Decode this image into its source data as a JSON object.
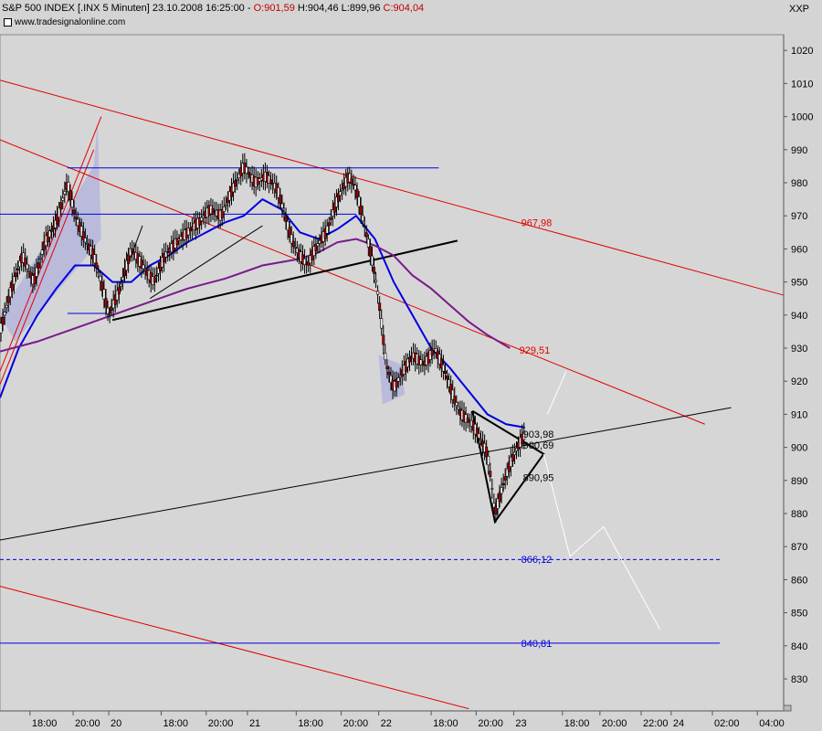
{
  "header": {
    "title_prefix": "S&P 500 INDEX [.INX  5 Minuten] 23.10.2008 16:25:00 - ",
    "open": "O:901,59",
    "high": "H:904,46",
    "low": "L:899,96",
    "close": "C:904,04",
    "source": "www.tradesignalonline.com",
    "symbol": "XXP"
  },
  "colors": {
    "background": "#d4d4d4",
    "plot_area": "#d6d6d6",
    "red_line": "#e00000",
    "blue_line": "#0000e0",
    "purple_ma": "#7a1a8a",
    "black_line": "#000000",
    "white_projection": "#ffffff",
    "channel_fill": "#b0b0dc"
  },
  "chart_data": {
    "type": "line",
    "title": "",
    "xlabel": "",
    "ylabel": "",
    "ylim": [
      820,
      1030
    ],
    "y_ticks": [
      830,
      840,
      850,
      860,
      870,
      880,
      890,
      900,
      910,
      920,
      930,
      940,
      950,
      960,
      970,
      980,
      990,
      1000,
      1010,
      1020
    ],
    "x_tick_labels": [
      "18:00",
      "20:00",
      "20",
      "18:00",
      "20:00",
      "21",
      "18:00",
      "20:00",
      "22",
      "18:00",
      "20:00",
      "23",
      "18:00",
      "20:00",
      "22:00",
      "24",
      "02:00",
      "04:00"
    ],
    "x_tick_index": [
      8,
      19.5,
      29,
      43,
      55,
      66,
      79,
      91,
      101,
      115,
      127,
      137,
      150,
      160,
      171,
      179,
      190,
      202
    ],
    "x_range": [
      0,
      209
    ],
    "grid": false,
    "price_path": [
      [
        0,
        935
      ],
      [
        3,
        948
      ],
      [
        6,
        958
      ],
      [
        9,
        950
      ],
      [
        12,
        962
      ],
      [
        15,
        968
      ],
      [
        18,
        980
      ],
      [
        20,
        970
      ],
      [
        23,
        962
      ],
      [
        25,
        958
      ],
      [
        27,
        950
      ],
      [
        29,
        940
      ],
      [
        32,
        948
      ],
      [
        35,
        960
      ],
      [
        38,
        955
      ],
      [
        41,
        950
      ],
      [
        44,
        958
      ],
      [
        47,
        962
      ],
      [
        50,
        965
      ],
      [
        53,
        968
      ],
      [
        56,
        972
      ],
      [
        59,
        970
      ],
      [
        62,
        978
      ],
      [
        65,
        985
      ],
      [
        68,
        980
      ],
      [
        71,
        982
      ],
      [
        74,
        978
      ],
      [
        76,
        970
      ],
      [
        78,
        962
      ],
      [
        80,
        958
      ],
      [
        82,
        955
      ],
      [
        84,
        960
      ],
      [
        87,
        965
      ],
      [
        90,
        975
      ],
      [
        93,
        982
      ],
      [
        95,
        978
      ],
      [
        97,
        968
      ],
      [
        99,
        958
      ],
      [
        100,
        952
      ],
      [
        101,
        945
      ],
      [
        102,
        935
      ],
      [
        103,
        925
      ],
      [
        105,
        918
      ],
      [
        107,
        922
      ],
      [
        110,
        928
      ],
      [
        113,
        925
      ],
      [
        116,
        930
      ],
      [
        119,
        922
      ],
      [
        121,
        915
      ],
      [
        123,
        910
      ],
      [
        126,
        907
      ],
      [
        128,
        903
      ],
      [
        130,
        898
      ],
      [
        131,
        890
      ],
      [
        132,
        880
      ],
      [
        134,
        888
      ],
      [
        136,
        895
      ],
      [
        138,
        900
      ],
      [
        140,
        904
      ]
    ],
    "series": [
      {
        "name": "",
        "color": "#0000e0",
        "values": [
          [
            0,
            915
          ],
          [
            5,
            930
          ],
          [
            10,
            940
          ],
          [
            15,
            948
          ],
          [
            20,
            955
          ],
          [
            25,
            955
          ],
          [
            30,
            950
          ],
          [
            35,
            950
          ],
          [
            40,
            955
          ],
          [
            45,
            958
          ],
          [
            50,
            962
          ],
          [
            55,
            965
          ],
          [
            60,
            968
          ],
          [
            65,
            970
          ],
          [
            70,
            975
          ],
          [
            75,
            972
          ],
          [
            80,
            965
          ],
          [
            85,
            963
          ],
          [
            90,
            966
          ],
          [
            95,
            970
          ],
          [
            100,
            963
          ],
          [
            105,
            950
          ],
          [
            110,
            940
          ],
          [
            115,
            930
          ],
          [
            120,
            924
          ],
          [
            125,
            917
          ],
          [
            130,
            910
          ],
          [
            135,
            907
          ],
          [
            140,
            906
          ]
        ]
      },
      {
        "name": "",
        "color": "#7a1a8a",
        "values": [
          [
            0,
            929
          ],
          [
            10,
            932
          ],
          [
            20,
            936
          ],
          [
            30,
            940
          ],
          [
            40,
            944
          ],
          [
            50,
            948
          ],
          [
            60,
            951
          ],
          [
            70,
            955
          ],
          [
            80,
            957
          ],
          [
            85,
            959
          ],
          [
            90,
            962
          ],
          [
            95,
            963
          ],
          [
            100,
            961
          ],
          [
            105,
            958
          ],
          [
            110,
            952
          ],
          [
            115,
            948
          ],
          [
            120,
            943
          ],
          [
            125,
            938
          ],
          [
            130,
            934
          ],
          [
            136,
            930
          ]
        ]
      }
    ],
    "lines": [
      {
        "color": "#e00000",
        "points": [
          [
            0,
            1011
          ],
          [
            209,
            946
          ]
        ]
      },
      {
        "color": "#e00000",
        "points": [
          [
            0,
            993
          ],
          [
            188,
            907
          ]
        ]
      },
      {
        "color": "#e00000",
        "points": [
          [
            0,
            858
          ],
          [
            125,
            821
          ]
        ]
      },
      {
        "color": "#e00000",
        "points": [
          [
            0,
            923
          ],
          [
            27,
            1000
          ]
        ]
      },
      {
        "color": "#e00000",
        "points": [
          [
            0,
            919
          ],
          [
            25,
            990
          ]
        ]
      },
      {
        "color": "#0000e0",
        "points": [
          [
            18,
            984.5
          ],
          [
            117,
            984.5
          ]
        ]
      },
      {
        "color": "#0000e0",
        "points": [
          [
            0,
            970.5
          ],
          [
            95,
            970.5
          ]
        ]
      },
      {
        "color": "#0000e0",
        "points": [
          [
            18,
            940.5
          ],
          [
            29,
            940.5
          ]
        ]
      },
      {
        "color": "#0000e0",
        "points": [
          [
            0,
            840.8
          ],
          [
            192,
            840.8
          ]
        ]
      },
      {
        "color": "#0000e0",
        "dashed": true,
        "points": [
          [
            0,
            866.1
          ],
          [
            192,
            866.1
          ]
        ]
      },
      {
        "color": "#000000",
        "width": 2,
        "points": [
          [
            30,
            938.5
          ],
          [
            122,
            962.5
          ]
        ]
      },
      {
        "color": "#000000",
        "points": [
          [
            0,
            872
          ],
          [
            195,
            912
          ]
        ]
      },
      {
        "color": "#000000",
        "points": [
          [
            29,
            940
          ],
          [
            38,
            967
          ]
        ]
      },
      {
        "color": "#000000",
        "points": [
          [
            40,
            945
          ],
          [
            70,
            967
          ]
        ]
      },
      {
        "color": "#000000",
        "width": 2,
        "points": [
          [
            126,
            911
          ],
          [
            145,
            898
          ],
          [
            132,
            877.5
          ],
          [
            126,
            911
          ]
        ]
      },
      {
        "color": "#ffffff",
        "points": [
          [
            145,
            898
          ],
          [
            152,
            867
          ],
          [
            161,
            876
          ],
          [
            176,
            845
          ]
        ]
      },
      {
        "color": "#ffffff",
        "points": [
          [
            146,
            910
          ],
          [
            151,
            923
          ]
        ]
      }
    ],
    "annotations": [
      {
        "text": "967,98",
        "value": 967.98,
        "x": 139,
        "color": "#e00000"
      },
      {
        "text": "929,51",
        "value": 929.51,
        "x": 138.5,
        "color": "#e00000"
      },
      {
        "text": "903,98",
        "value": 903.98,
        "x": 139.5,
        "color": "#000000"
      },
      {
        "text": "900,69",
        "value": 900.69,
        "x": 139.5,
        "color": "#000000"
      },
      {
        "text": "890,95",
        "value": 890.95,
        "x": 139.5,
        "color": "#000000"
      },
      {
        "text": "866,12",
        "value": 866.12,
        "x": 139,
        "color": "#0000e0"
      },
      {
        "text": "840,81",
        "value": 840.81,
        "x": 139,
        "color": "#0000e0"
      }
    ]
  }
}
